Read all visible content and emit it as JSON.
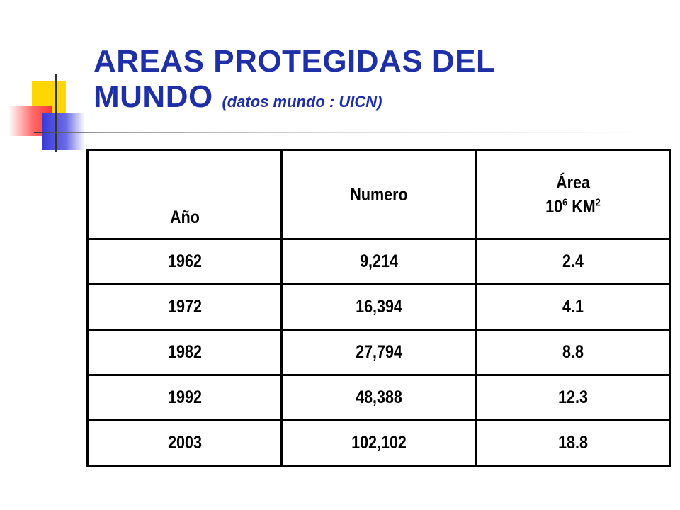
{
  "slide": {
    "title_line1": "AREAS PROTEGIDAS DEL",
    "title_line2": "MUNDO",
    "title_note": "(datos mundo : UICN)"
  },
  "table": {
    "headers": {
      "year": "Año",
      "number": "Numero",
      "area_line1": "Área",
      "area_unit_base": "10",
      "area_unit_exp": "6",
      "area_unit_name": "KM",
      "area_unit_name_exp": "2"
    },
    "rows": [
      {
        "year": "1962",
        "number": "9,214",
        "area": "2.4"
      },
      {
        "year": "1972",
        "number": "16,394",
        "area": "4.1"
      },
      {
        "year": "1982",
        "number": "27,794",
        "area": "8.8"
      },
      {
        "year": "1992",
        "number": "48,388",
        "area": "12.3"
      },
      {
        "year": "2003",
        "number": "102,102",
        "area": "18.8"
      }
    ]
  },
  "colors": {
    "title": "#1f2fa8",
    "deco_yellow": "#ffd700",
    "deco_red": "#ff3333",
    "deco_blue": "#3a3ad8"
  }
}
